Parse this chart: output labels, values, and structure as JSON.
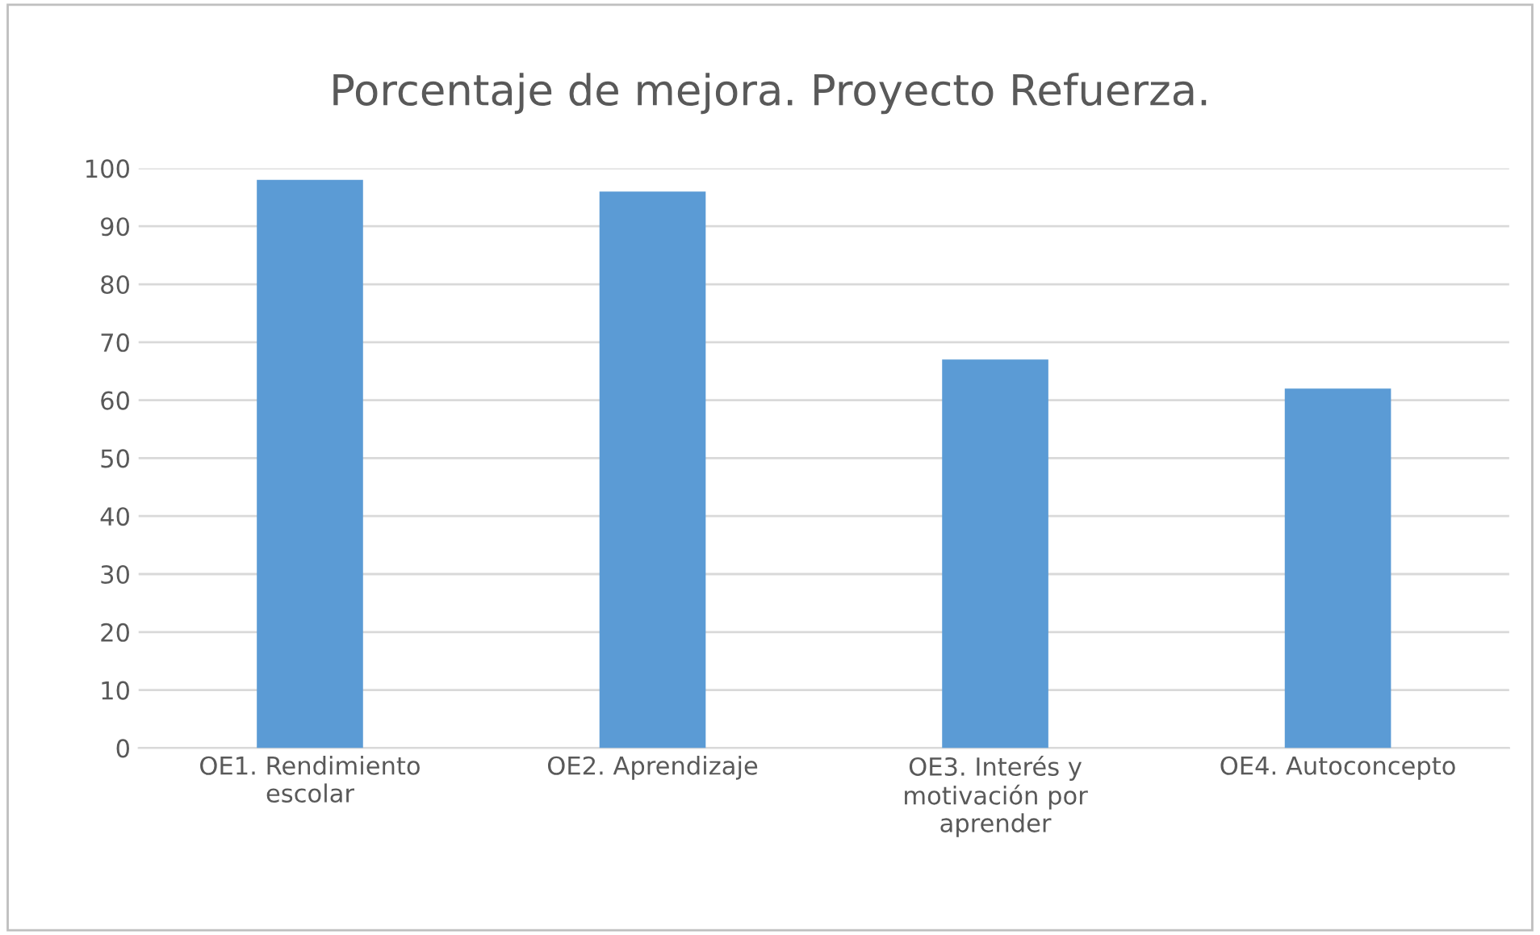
{
  "chart_data": {
    "type": "bar",
    "title": "Porcentaje de mejora. Proyecto Refuerza.",
    "categories": [
      "OE1. Rendimiento\nescolar",
      "OE2. Aprendizaje",
      "OE3. Interés y\nmotivación por\naprender",
      "OE4. Autoconcepto"
    ],
    "values": [
      98,
      96,
      67,
      62
    ],
    "color": "#5b9bd5",
    "ylim": [
      0,
      100
    ],
    "yticks": [
      0,
      10,
      20,
      30,
      40,
      50,
      60,
      70,
      80,
      90,
      100
    ],
    "grid": "y"
  }
}
